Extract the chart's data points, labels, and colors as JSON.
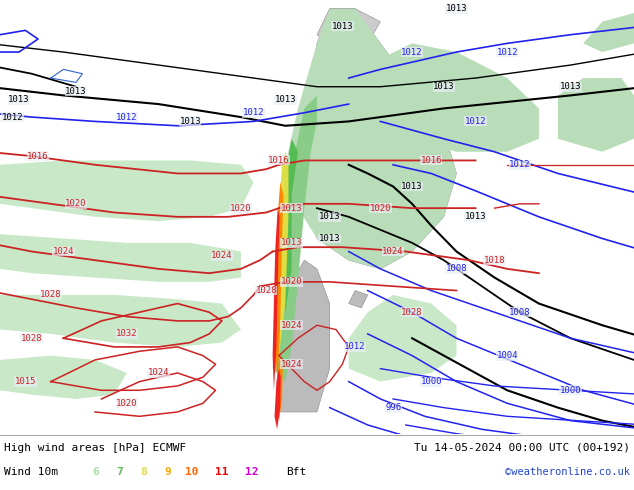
{
  "title_left": "High wind areas [hPa] ECMWF",
  "title_right": "Tu 14-05-2024 00:00 UTC (00+192)",
  "subtitle_left": "Wind 10m",
  "legend_nums": [
    "6",
    "7",
    "8",
    "9",
    "10",
    "11",
    "12"
  ],
  "legend_colors": [
    "#aaddaa",
    "#55bb55",
    "#dddd44",
    "#ffaa00",
    "#ff6600",
    "#ee0000",
    "#cc00cc"
  ],
  "legend_suffix": "Bft",
  "watermark": "©weatheronline.co.uk",
  "bg_color": "#e8eef5",
  "fig_width": 6.34,
  "fig_height": 4.9
}
